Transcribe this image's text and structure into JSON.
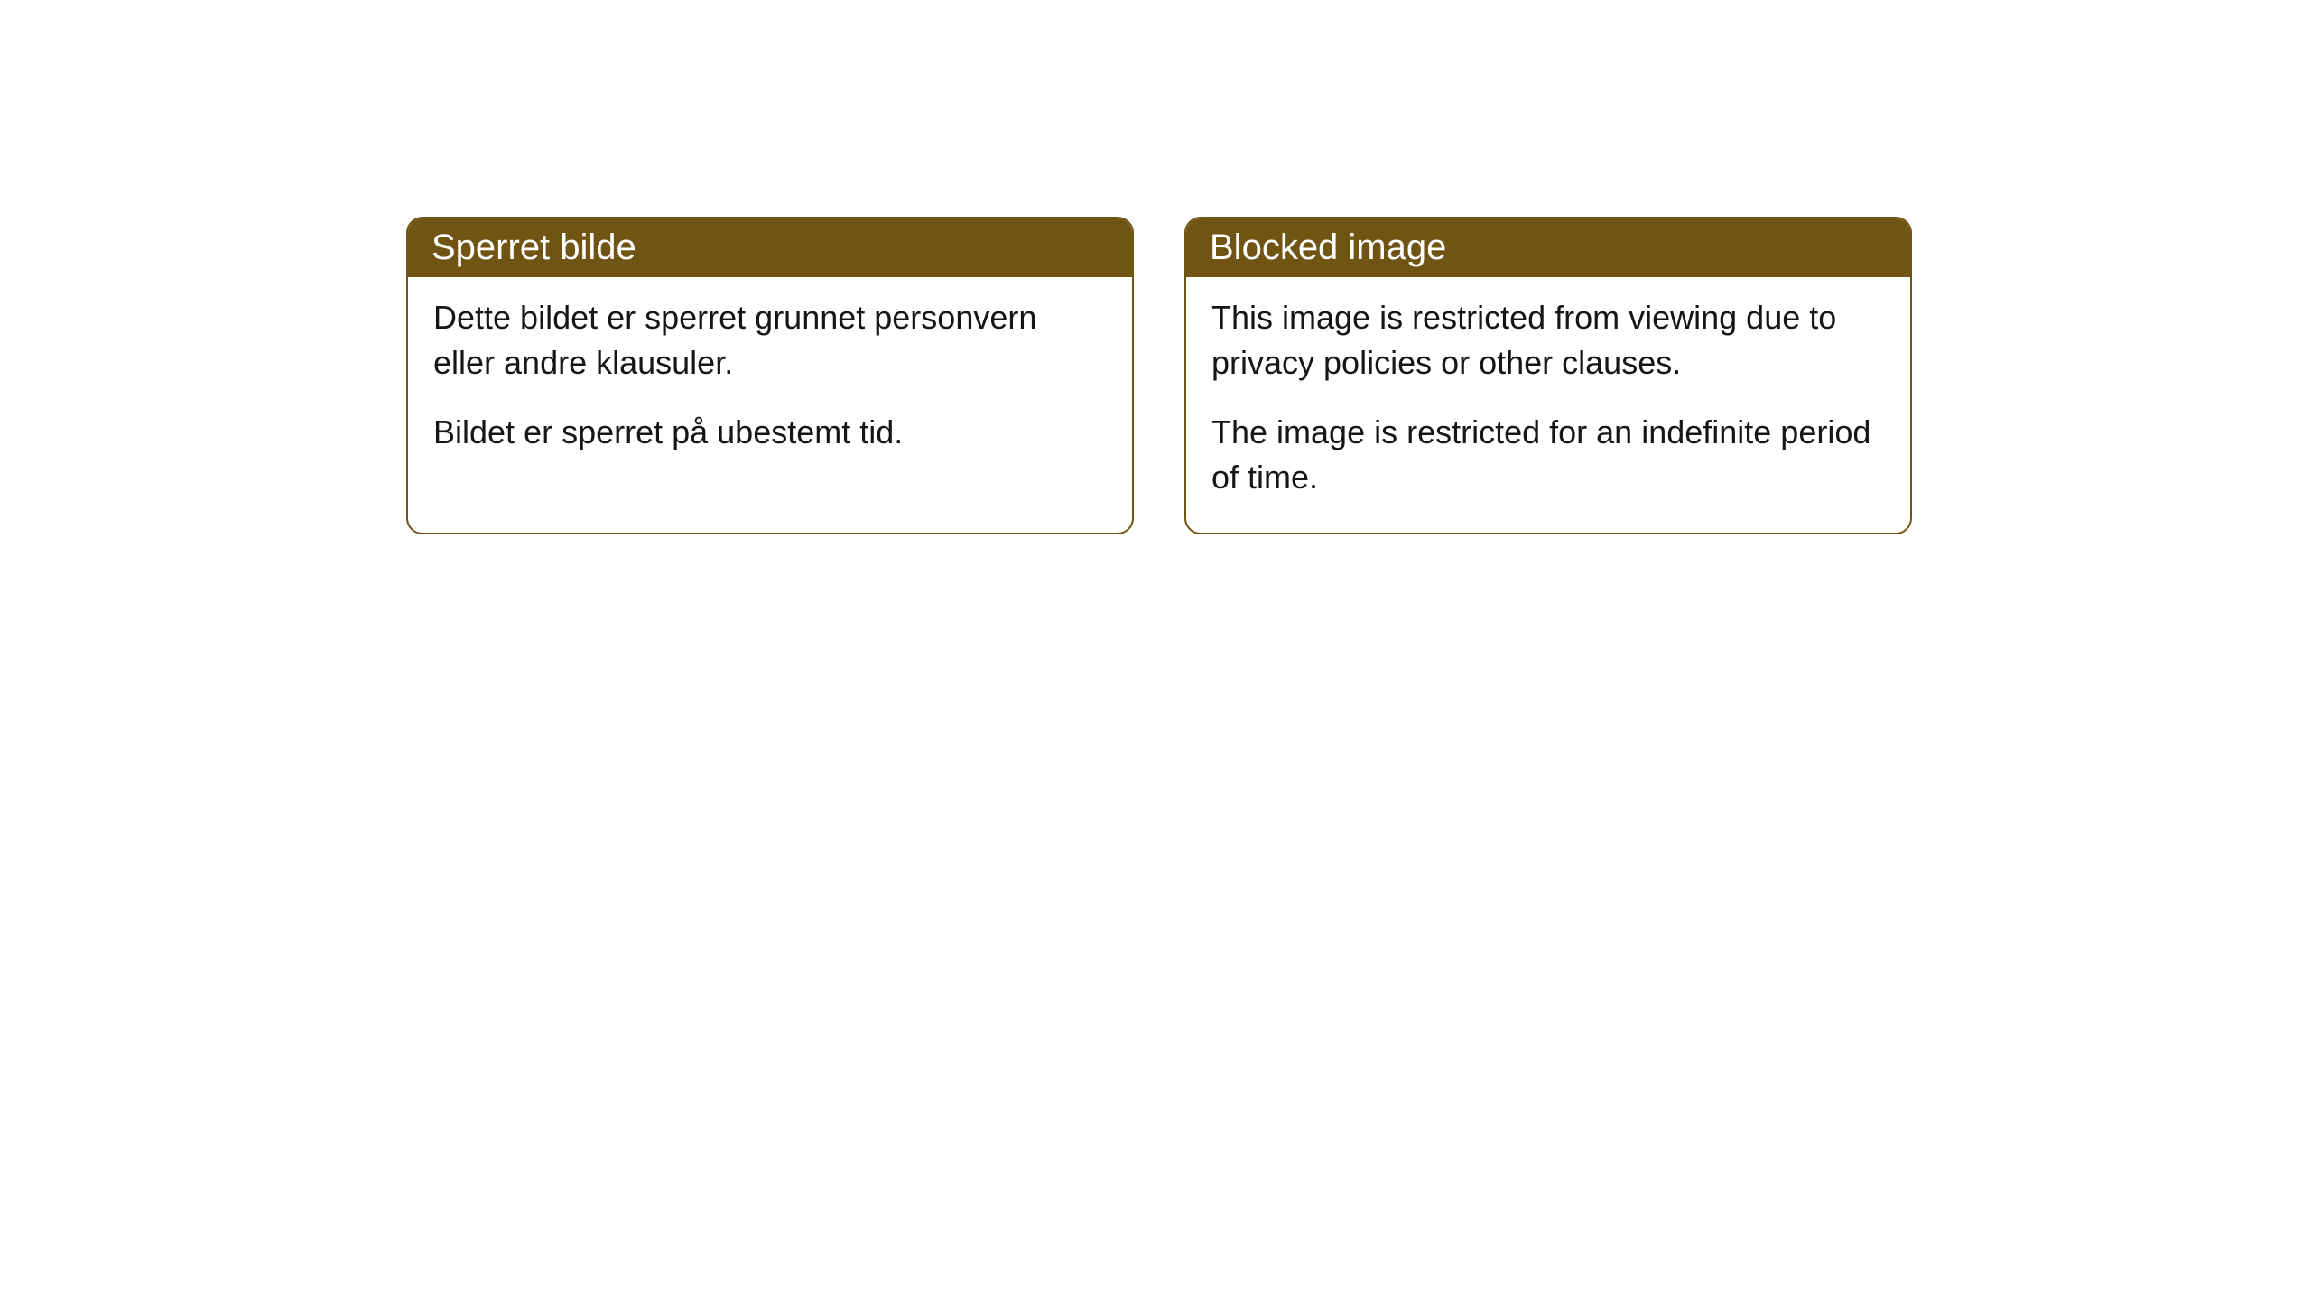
{
  "cards": [
    {
      "title": "Sperret bilde",
      "paragraph1": "Dette bildet er sperret grunnet personvern eller andre klausuler.",
      "paragraph2": "Bildet er sperret på ubestemt tid."
    },
    {
      "title": "Blocked image",
      "paragraph1": "This image is restricted from viewing due to privacy policies or other clauses.",
      "paragraph2": "The image is restricted for an indefinite period of time."
    }
  ],
  "styling": {
    "header_background_color": "#6f5413",
    "header_text_color": "#ffffff",
    "border_color": "#6f5413",
    "body_text_color": "#161616",
    "background_color": "#ffffff",
    "border_radius": 18,
    "header_fontsize": 40,
    "body_fontsize": 36
  }
}
